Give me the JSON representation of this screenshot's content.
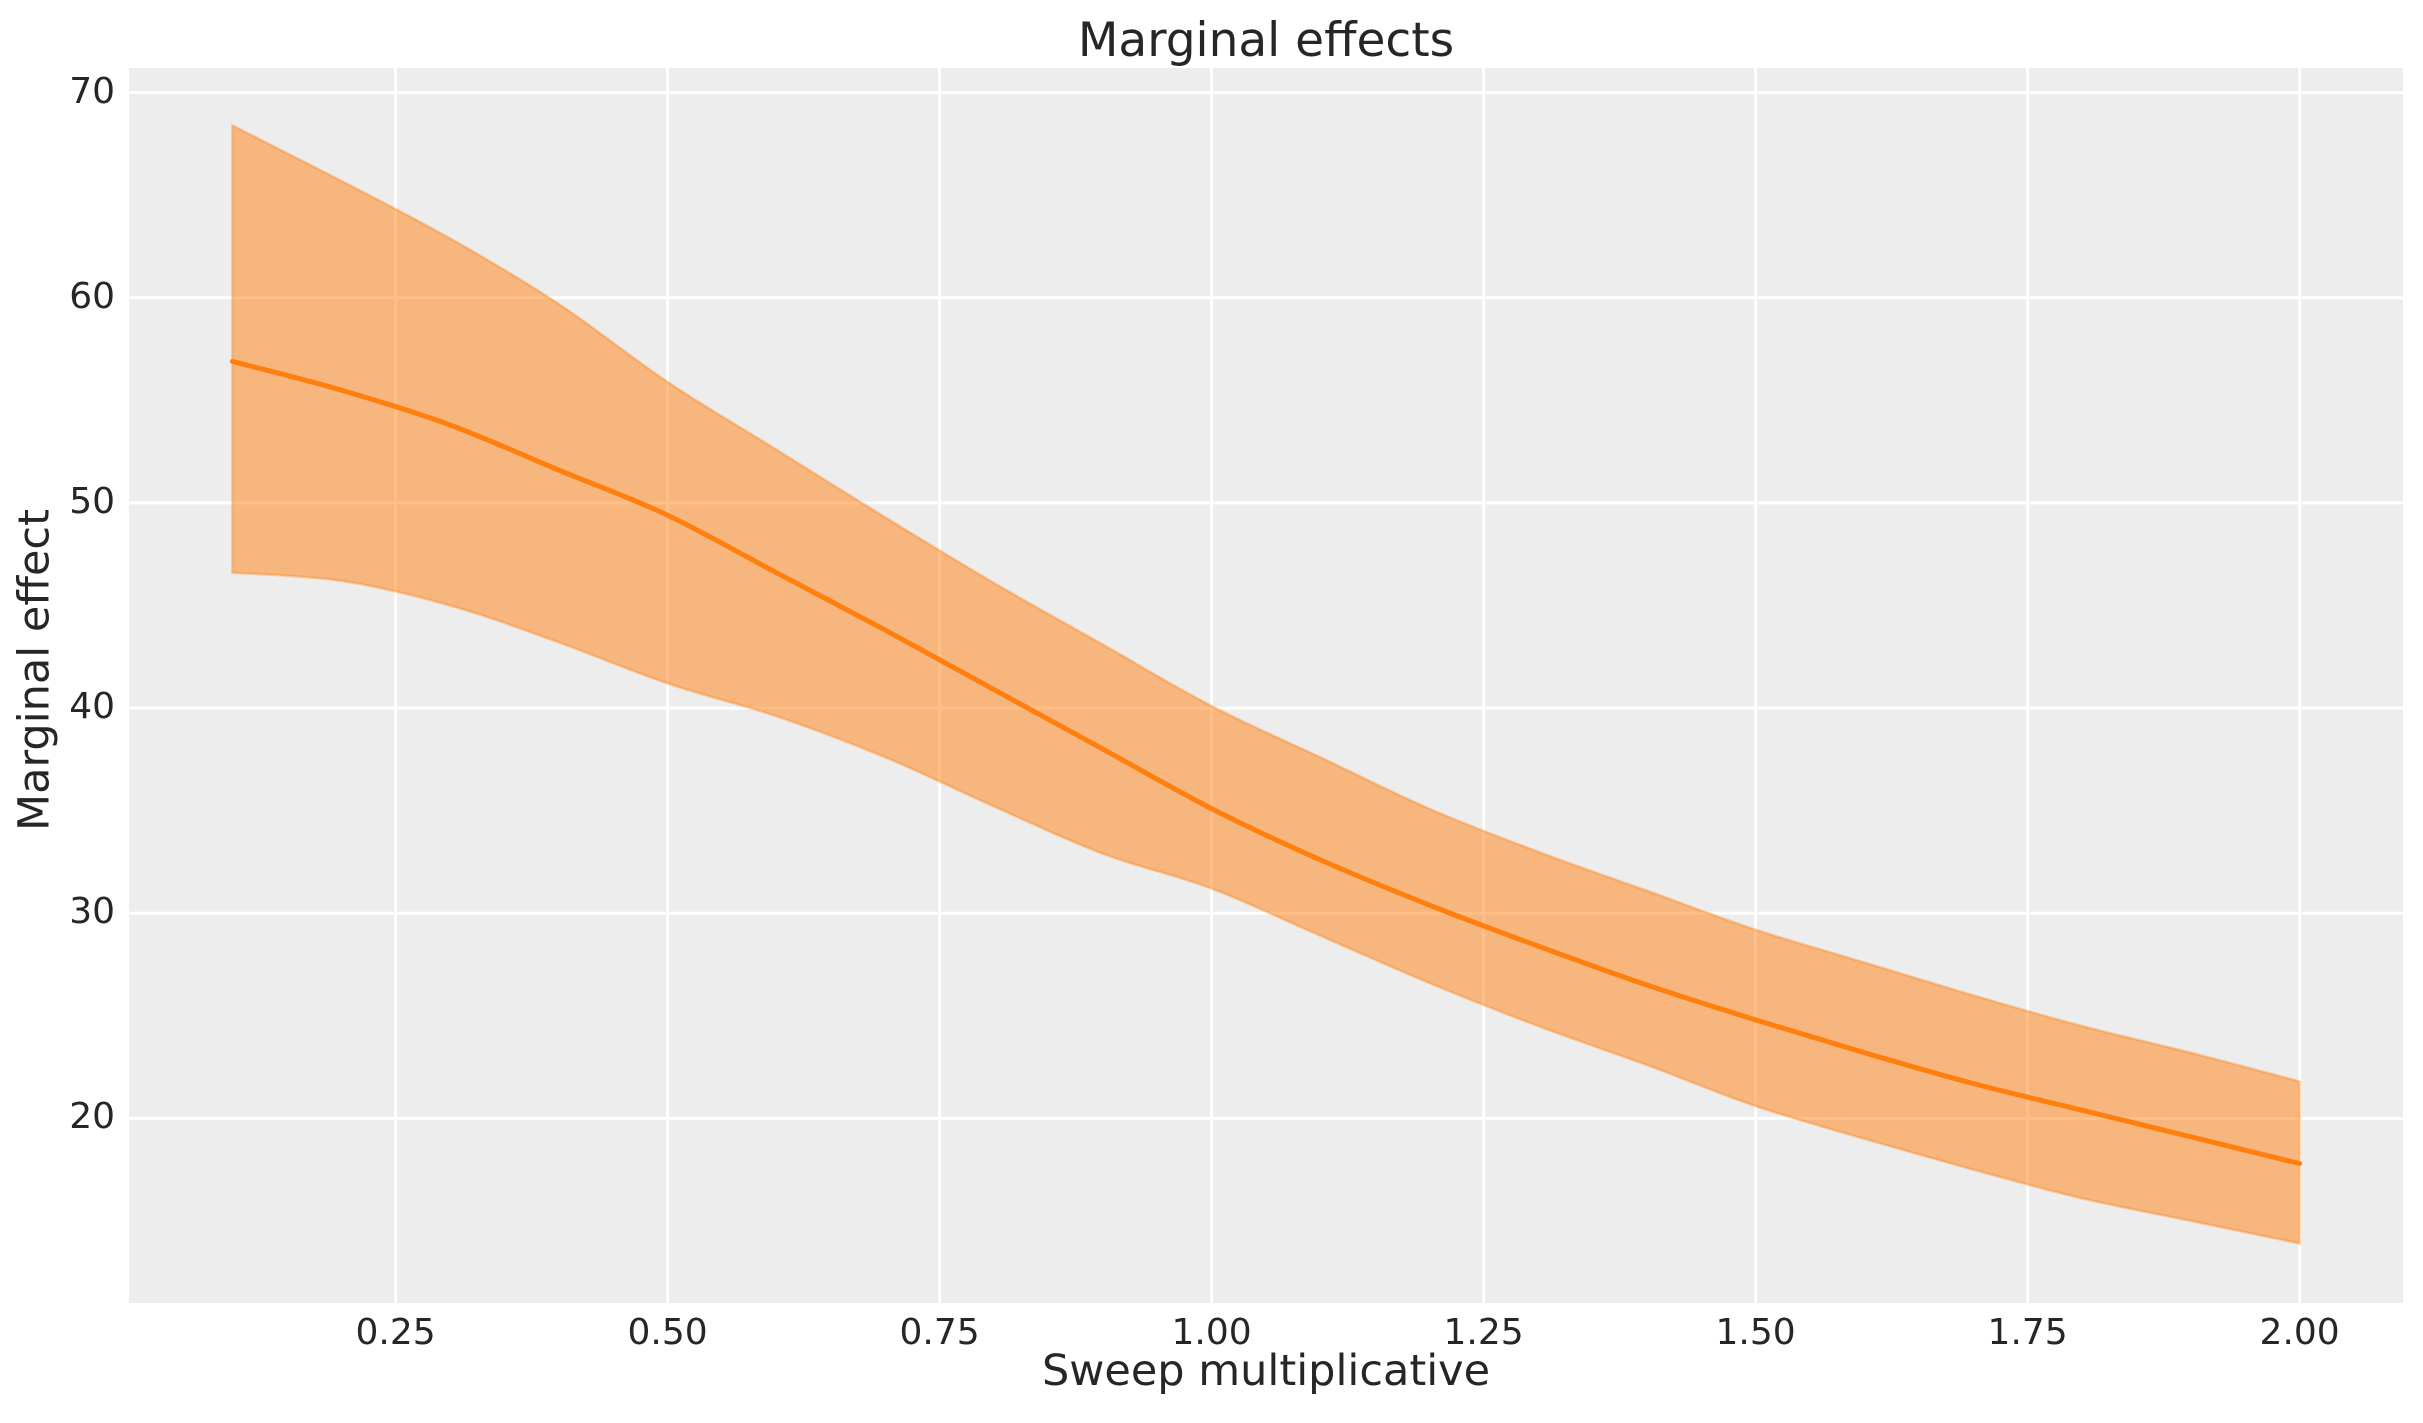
{
  "chart_data": {
    "type": "line",
    "title": "Marginal effects",
    "xlabel": "Sweep multiplicative",
    "ylabel": "Marginal effect",
    "x": [
      0.1,
      0.2,
      0.3,
      0.4,
      0.5,
      0.6,
      0.7,
      0.8,
      0.9,
      1.0,
      1.1,
      1.2,
      1.3,
      1.4,
      1.5,
      1.6,
      1.7,
      1.8,
      1.9,
      2.0
    ],
    "series": [
      {
        "name": "marginal-effect-mean",
        "values": [
          56.9,
          55.5,
          53.8,
          51.6,
          49.4,
          46.6,
          43.8,
          40.9,
          38.0,
          35.1,
          32.6,
          30.4,
          28.4,
          26.5,
          24.8,
          23.2,
          21.7,
          20.4,
          19.1,
          17.8
        ]
      },
      {
        "name": "ci-upper",
        "values": [
          68.4,
          65.7,
          62.9,
          59.7,
          55.9,
          52.6,
          49.3,
          46.1,
          43.1,
          40.1,
          37.6,
          35.1,
          33.0,
          31.1,
          29.2,
          27.6,
          26.0,
          24.5,
          23.2,
          21.8
        ]
      },
      {
        "name": "ci-lower",
        "values": [
          46.6,
          46.2,
          45.0,
          43.2,
          41.2,
          39.6,
          37.6,
          35.2,
          32.9,
          31.2,
          28.9,
          26.6,
          24.5,
          22.6,
          20.6,
          19.0,
          17.5,
          16.1,
          15.0,
          13.9
        ]
      }
    ],
    "band": {
      "upper": "ci-upper",
      "lower": "ci-lower",
      "opacity": 0.5
    },
    "xlim": [
      0.005,
      2.095
    ],
    "ylim": [
      11.0,
      71.2
    ],
    "x_ticks": [
      {
        "value": 0.25,
        "label": "0.25"
      },
      {
        "value": 0.5,
        "label": "0.50"
      },
      {
        "value": 0.75,
        "label": "0.75"
      },
      {
        "value": 1.0,
        "label": "1.00"
      },
      {
        "value": 1.25,
        "label": "1.25"
      },
      {
        "value": 1.5,
        "label": "1.50"
      },
      {
        "value": 1.75,
        "label": "1.75"
      },
      {
        "value": 2.0,
        "label": "2.00"
      }
    ],
    "y_ticks": [
      {
        "value": 20,
        "label": "20"
      },
      {
        "value": 30,
        "label": "30"
      },
      {
        "value": 40,
        "label": "40"
      },
      {
        "value": 50,
        "label": "50"
      },
      {
        "value": 60,
        "label": "60"
      },
      {
        "value": 70,
        "label": "70"
      }
    ],
    "grid": true,
    "legend": false,
    "colors": {
      "line": "#ff7f0e",
      "band_fill": "#ff7f0e",
      "band_edge": "#ff7f0e",
      "plot_bg": "#ededed",
      "grid": "#ffffff",
      "figure_bg": "#ffffff",
      "text": "#262626"
    }
  }
}
